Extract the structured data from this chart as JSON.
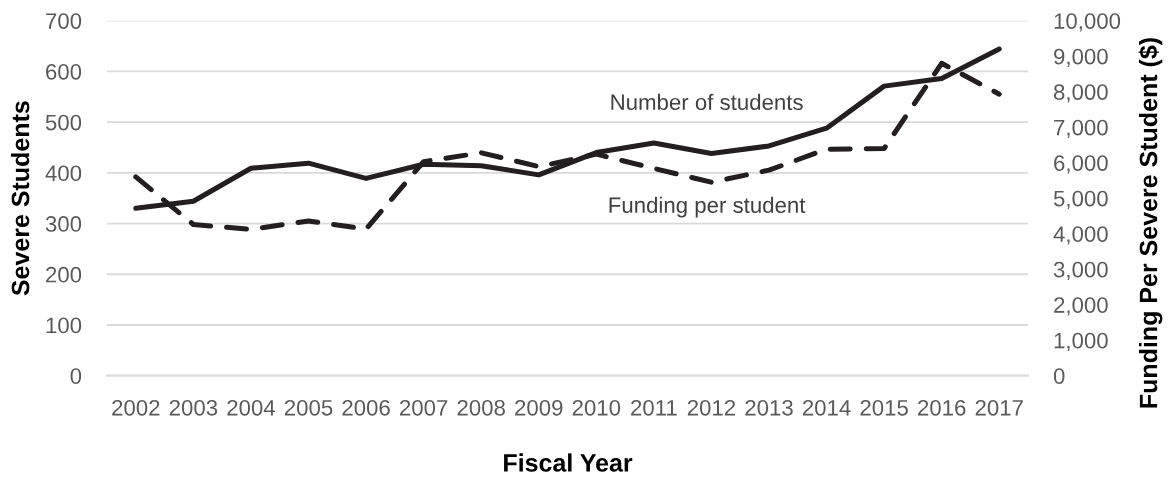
{
  "chart_data": {
    "type": "line",
    "xlabel": "Fiscal Year",
    "ylabel": "Severe Students",
    "y2label": "Funding Per Severe Student ($)",
    "categories": [
      "2002",
      "2003",
      "2004",
      "2005",
      "2006",
      "2007",
      "2008",
      "2009",
      "2010",
      "2011",
      "2012",
      "2013",
      "2014",
      "2015",
      "2016",
      "2017"
    ],
    "series": [
      {
        "name": "Number of students",
        "color": "#231f20",
        "line_style": "solid",
        "values": [
          330,
          344,
          409,
          419,
          389,
          417,
          414,
          396,
          440,
          459,
          438,
          453,
          488,
          571,
          586,
          644
        ]
      },
      {
        "name": "Funding per student",
        "color": "#231f20",
        "line_style": "dashed",
        "axis": "y2",
        "values": [
          5600,
          4260,
          4120,
          4360,
          4130,
          6030,
          6280,
          5890,
          6240,
          5840,
          5450,
          5790,
          6380,
          6400,
          8800,
          7930
        ]
      }
    ],
    "ylim": [
      0,
      700
    ],
    "yticks": [
      0,
      100,
      200,
      300,
      400,
      500,
      600,
      700
    ],
    "y2lim": [
      0,
      10000
    ],
    "y2ticks": [
      0,
      {
        "value": 1000,
        "label": "1,000"
      },
      {
        "value": 2000,
        "label": "2,000"
      },
      {
        "value": 3000,
        "label": "3,000"
      },
      {
        "value": 4000,
        "label": "4,000"
      },
      {
        "value": 5000,
        "label": "5,000"
      },
      {
        "value": 6000,
        "label": "6,000"
      },
      {
        "value": 7000,
        "label": "7,000"
      },
      {
        "value": 8000,
        "label": "8,000"
      },
      {
        "value": 9000,
        "label": "9,000"
      },
      {
        "value": 10000,
        "label": "10,000"
      }
    ],
    "grid": "y"
  }
}
